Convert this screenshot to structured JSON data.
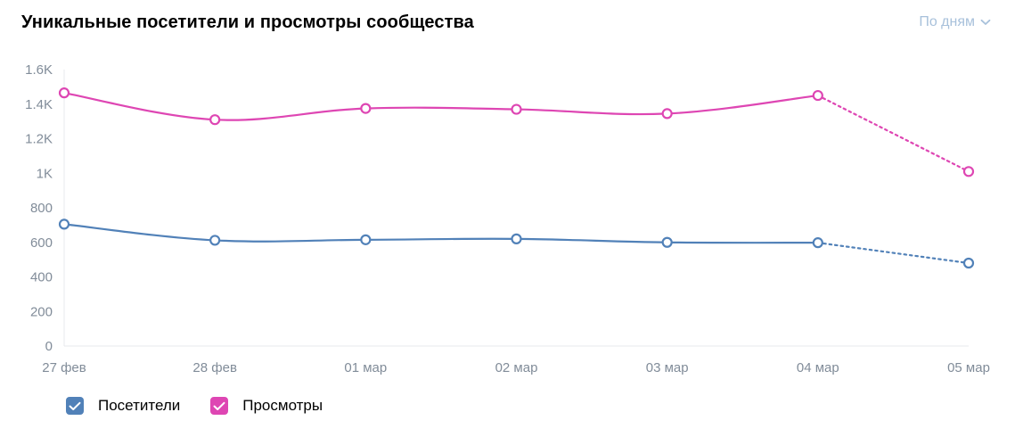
{
  "header": {
    "title": "Уникальные посетители и просмотры сообщества",
    "period_label": "По дням"
  },
  "icons": {
    "period_dropdown": "chevron-down-icon",
    "legend_check": "check-icon"
  },
  "colors": {
    "visitors": "#5181b8",
    "views": "#de46b3",
    "axis_text": "#818c99",
    "period_text": "#a8c1db"
  },
  "legend": [
    {
      "label": "Посетители",
      "color": "#5181b8"
    },
    {
      "label": "Просмотры",
      "color": "#de46b3"
    }
  ],
  "chart_data": {
    "type": "line",
    "categories": [
      "27 фев",
      "28 фев",
      "01 мар",
      "02 мар",
      "03 мар",
      "04 мар",
      "05 мар"
    ],
    "series": [
      {
        "name": "Посетители",
        "color": "#5181b8",
        "values": [
          705,
          612,
          615,
          620,
          600,
          598,
          480
        ],
        "dashed_from_index": 5
      },
      {
        "name": "Просмотры",
        "color": "#de46b3",
        "values": [
          1465,
          1310,
          1375,
          1370,
          1345,
          1450,
          1010
        ],
        "dashed_from_index": 5
      }
    ],
    "yticks": [
      {
        "value": 0,
        "label": "0"
      },
      {
        "value": 200,
        "label": "200"
      },
      {
        "value": 400,
        "label": "400"
      },
      {
        "value": 600,
        "label": "600"
      },
      {
        "value": 800,
        "label": "800"
      },
      {
        "value": 1000,
        "label": "1K"
      },
      {
        "value": 1200,
        "label": "1.2K"
      },
      {
        "value": 1400,
        "label": "1.4K"
      },
      {
        "value": 1600,
        "label": "1.6K"
      }
    ],
    "ylim": [
      0,
      1600
    ],
    "grid": false,
    "legend_position": "bottom-left"
  }
}
